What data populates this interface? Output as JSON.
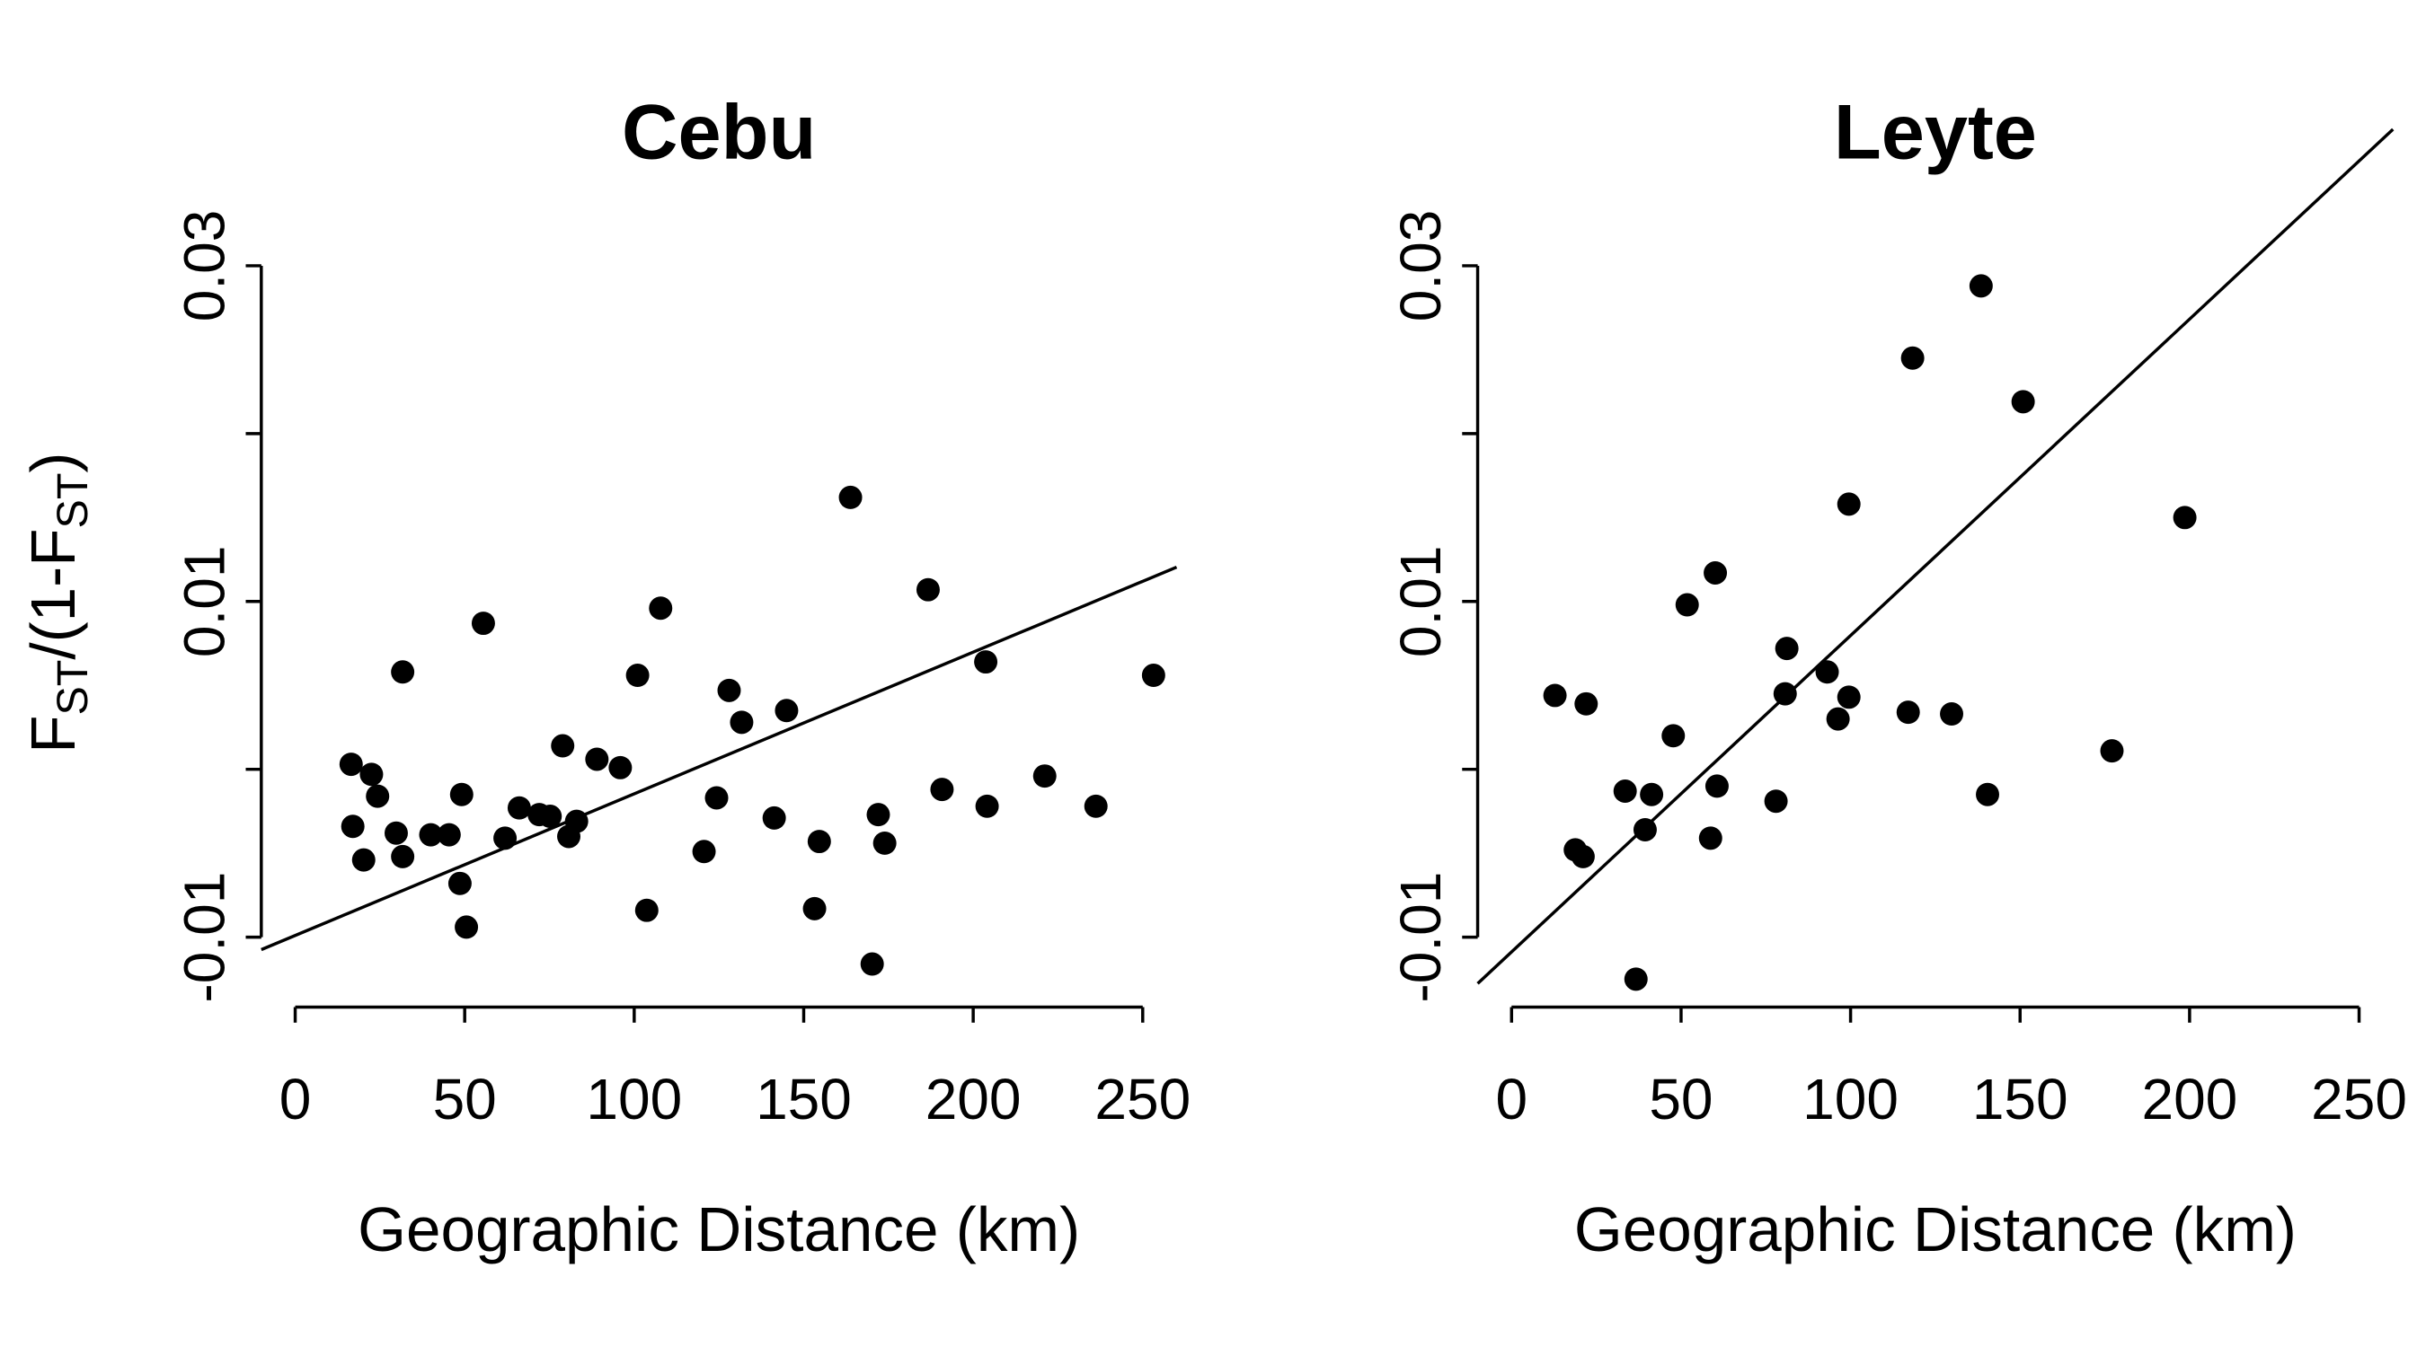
{
  "chart_data": [
    {
      "type": "scatter",
      "title": "Cebu",
      "xlabel": "Geographic Distance (km)",
      "ylabel_parts": [
        "F",
        "ST",
        "/(1-F",
        "ST",
        ")"
      ],
      "color": "#000000",
      "x": [
        16.5,
        17,
        20.2,
        22.5,
        24.3,
        29.8,
        31.7,
        31.7,
        40,
        45.4,
        48.6,
        49.1,
        50.5,
        55.5,
        61.9,
        66.1,
        72,
        75.2,
        78.9,
        80.7,
        83,
        89,
        95.9,
        101,
        103.7,
        107.8,
        120.6,
        124.3,
        128,
        131.7,
        141.3,
        144.95,
        153.2,
        154.6,
        163.8,
        170.2,
        172,
        173.9,
        186.7,
        190.8,
        203.7,
        204.1,
        221.1,
        236.2,
        253.2
      ],
      "values": [
        0.0003,
        -0.0034,
        -0.0054,
        -0.0003,
        -0.0016,
        -0.0038,
        -0.0052,
        0.0058,
        -0.0039,
        -0.0039,
        -0.0068,
        -0.0015,
        -0.0094,
        0.0087,
        -0.0041,
        -0.0023,
        -0.0027,
        -0.0028,
        0.0014,
        -0.004,
        -0.0031,
        0.0006,
        0.0001,
        0.0056,
        -0.0084,
        0.0096,
        -0.0049,
        -0.0017,
        0.0047,
        0.0028,
        -0.0029,
        0.0035,
        -0.0083,
        -0.0043,
        0.0162,
        -0.0116,
        -0.0027,
        -0.0044,
        0.0107,
        -0.0012,
        0.0064,
        -0.0022,
        -0.0004,
        -0.0022,
        0.0056
      ],
      "trend_line": {
        "intercept": -0.0099,
        "slope": 8.44e-05
      },
      "xlim": [
        -10,
        260
      ],
      "ylim": [
        -0.013,
        0.031
      ],
      "xticks": [
        0,
        50,
        100,
        150,
        200,
        250
      ],
      "yticks": [
        -0.01,
        0.01,
        0.03
      ],
      "minor_yticks": [
        0,
        0.02
      ]
    },
    {
      "type": "scatter",
      "title": "Leyte",
      "xlabel": "Geographic Distance (km)",
      "color": "#000000",
      "x": [
        12.8,
        22,
        18.8,
        21.1,
        33.5,
        36.7,
        39.4,
        41.3,
        47.7,
        51.8,
        60.1,
        60.6,
        58.7,
        78,
        80.7,
        81.2,
        93.1,
        96.3,
        99.5,
        99.5,
        117,
        118.3,
        129.8,
        138.5,
        140.4,
        150.9,
        177.1,
        198.6
      ],
      "values": [
        0.0044,
        0.0039,
        -0.0048,
        -0.0052,
        -0.0013,
        -0.0125,
        -0.0036,
        -0.0015,
        0.002,
        0.0098,
        0.0117,
        -0.001,
        -0.0041,
        -0.0019,
        0.0045,
        0.0072,
        0.0058,
        0.003,
        0.0043,
        0.0158,
        0.0034,
        0.0245,
        0.0033,
        0.0288,
        -0.0015,
        0.0219,
        0.0011,
        0.015
      ],
      "trend_line": {
        "intercept": -0.01088,
        "slope": 0.0001885
      },
      "xlim": [
        -10,
        260
      ],
      "ylim": [
        -0.013,
        0.031
      ],
      "xticks": [
        0,
        50,
        100,
        150,
        200,
        250
      ],
      "yticks": [
        -0.01,
        0.01,
        0.03
      ],
      "minor_yticks": [
        0,
        0.02
      ]
    }
  ]
}
